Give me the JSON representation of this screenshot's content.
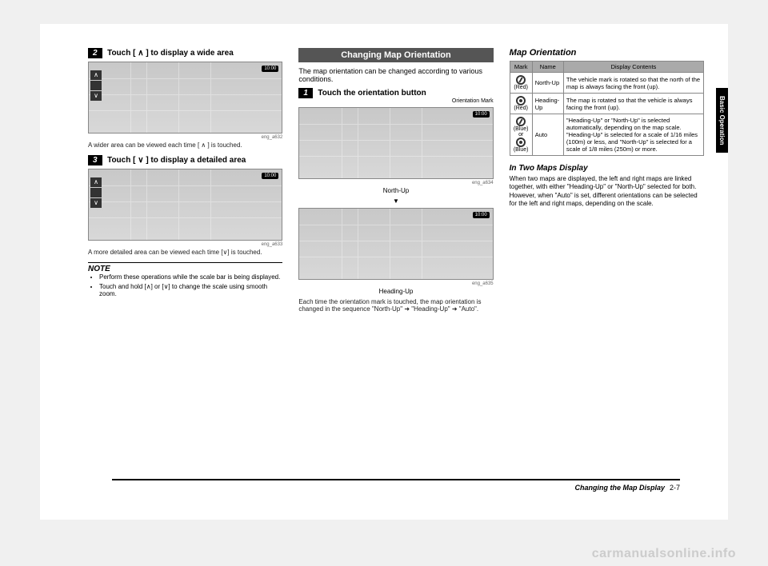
{
  "col1": {
    "step2_num": "2",
    "step2_text": "Touch [ ∧ ] to display a wide area",
    "map1_time": "10:00",
    "map1_id": "eng_a632",
    "map1_caption": "A wider area can be viewed each time [ ∧ ] is touched.",
    "step3_num": "3",
    "step3_text": "Touch [ ∨ ] to display a detailed area",
    "map2_time": "10:00",
    "map2_id": "eng_a633",
    "map2_caption": "A more detailed area can be viewed each time [∨] is touched.",
    "note_head": "NOTE",
    "note1": "Perform these operations while the scale bar is being displayed.",
    "note2": "Touch and hold [∧] or [∨] to change the scale using smooth zoom."
  },
  "col2": {
    "section_head": "Changing Map Orientation",
    "intro": "The map orientation can be changed according to various conditions.",
    "step1_num": "1",
    "step1_text": "Touch the orientation button",
    "orient_label": "Orientation Mark",
    "map1_time": "10:00",
    "map1_id": "eng_a634",
    "state_north": "North-Up",
    "arrow": "▼",
    "map2_time": "10:00",
    "map2_id": "eng_a635",
    "state_heading": "Heading-Up",
    "caption": "Each time the orientation mark is touched, the map orientation is changed in the sequence \"North-Up\" ➜ \"Heading-Up\" ➜ \"Auto\"."
  },
  "col3": {
    "title": "Map Orientation",
    "th_mark": "Mark",
    "th_name": "Name",
    "th_contents": "Display Contents",
    "row1_mark": "(Red)",
    "row1_name": "North-Up",
    "row1_contents": "The vehicle mark is rotated so that the north of the map is always facing the front (up).",
    "row2_mark": "(Red)",
    "row2_name": "Heading-Up",
    "row2_contents": "The map is rotated so that the vehicle is always facing the front (up).",
    "row3_mark1": "(Blue)",
    "row3_or": "or",
    "row3_mark2": "(Blue)",
    "row3_name": "Auto",
    "row3_contents": "\"Heading-Up\" or \"North-Up\" is selected automatically, depending on the map scale. \"Heading-Up\" is selected for a scale of 1/16 miles (100m) or less, and \"North-Up\" is selected for a scale of 1/8 miles (250m) or more.",
    "sub_title": "In Two Maps Display",
    "sub_text": "When two maps are displayed, the left and right maps are linked together, with either \"Heading-Up\" or \"North-Up\" selected for both. However, when \"Auto\" is set, different orientations can be selected for the left and right maps, depending on the scale."
  },
  "side_tab": "Basic Operation",
  "footer_title": "Changing the Map Display",
  "footer_page": "2-7",
  "watermark": "carmanualsonline.info"
}
